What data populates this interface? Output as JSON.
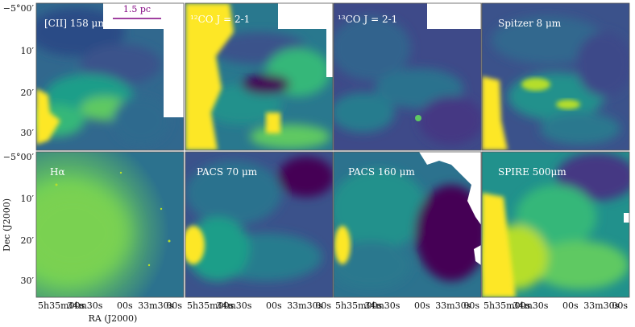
{
  "figure": {
    "ylabel": "Dec (J2000)",
    "xlabel": "RA (J2000)",
    "scalebar": {
      "label": "1.5 pc",
      "color": "#800080"
    },
    "dec_ticks_top": [
      "−5°00′",
      "10′",
      "20′",
      "30′"
    ],
    "dec_ticks_bottom": [
      "−5°00′",
      "10′",
      "20′",
      "30′"
    ],
    "ra_ticks": [
      "5h35m00s",
      "34m30s",
      "00s",
      "33m30s",
      "00s"
    ],
    "colormap": [
      "#440154",
      "#3b528b",
      "#21918c",
      "#5ec962",
      "#fde725"
    ]
  },
  "panels": [
    {
      "label": "[CII] 158 μm"
    },
    {
      "label": "¹²CO J = 2-1"
    },
    {
      "label": "¹³CO J = 2-1"
    },
    {
      "label": "Spitzer 8 μm"
    },
    {
      "label": "Hα"
    },
    {
      "label": "PACS 70 μm"
    },
    {
      "label": "PACS 160 μm"
    },
    {
      "label": "SPIRE 500μm"
    }
  ]
}
